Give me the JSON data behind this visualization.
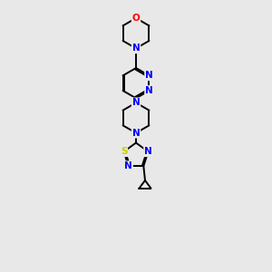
{
  "bg_color": "#e8e8e8",
  "atom_color_N": "#0000ff",
  "atom_color_O": "#ff0000",
  "atom_color_S": "#cccc00",
  "bond_color": "#000000",
  "font_size_atom": 7.5,
  "fig_width": 3.0,
  "fig_height": 3.0,
  "dpi": 100,
  "xlim": [
    0,
    8
  ],
  "ylim": [
    0,
    18
  ]
}
